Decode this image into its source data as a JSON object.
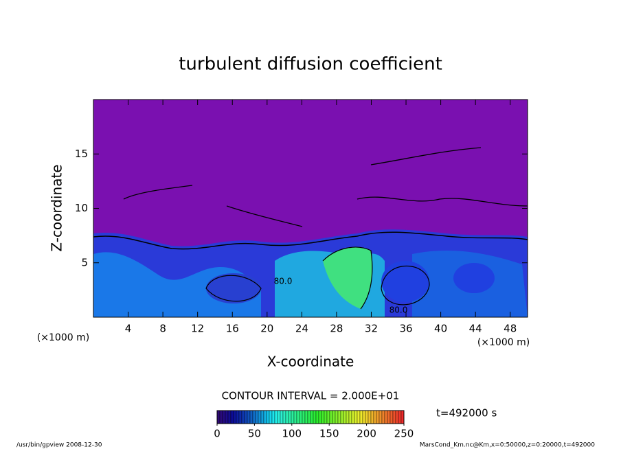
{
  "chart_data": {
    "type": "contour",
    "title": "turbulent diffusion coefficient",
    "x_label": "X-coordinate",
    "y_label": "Z-coordinate",
    "x_units": "(×1000 m)",
    "xlim": [
      0,
      50
    ],
    "xticks": [
      4,
      8,
      12,
      16,
      20,
      24,
      28,
      32,
      36,
      40,
      44,
      48
    ],
    "ylim": [
      0,
      20
    ],
    "yticks": [
      5,
      10,
      15
    ],
    "contour_interval": "CONTOUR INTERVAL = 2.000E+01",
    "contour_labels": [
      "80.0",
      "80.0"
    ],
    "time_label": "t=492000 s",
    "colorbar": {
      "lim": [
        0,
        250
      ],
      "ticks": [
        0,
        50,
        100,
        150,
        200,
        250
      ]
    },
    "footer_left": "/usr/bin/gpview  2008-12-30",
    "footer_right": "MarsCond_Km.nc@Km,x=0:50000,z=0:20000,t=492000"
  }
}
